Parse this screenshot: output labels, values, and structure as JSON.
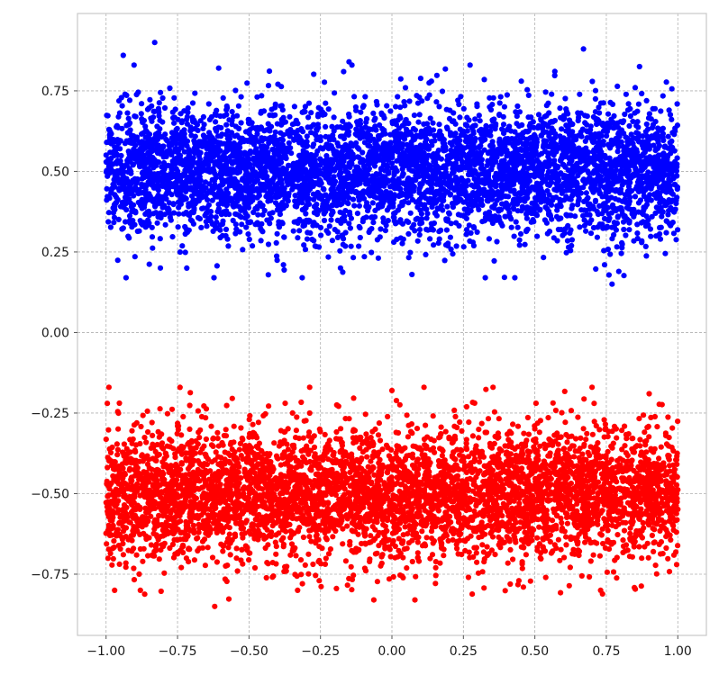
{
  "chart_data": {
    "type": "scatter",
    "title": "",
    "xlabel": "",
    "ylabel": "",
    "xlim": [
      -1.1,
      1.1
    ],
    "ylim": [
      -0.94,
      0.99
    ],
    "grid": true,
    "x_ticks": [
      "−1.00",
      "−0.75",
      "−0.50",
      "−0.25",
      "0.00",
      "0.25",
      "0.50",
      "0.75",
      "1.00"
    ],
    "x_tick_values": [
      -1.0,
      -0.75,
      -0.5,
      -0.25,
      0.0,
      0.25,
      0.5,
      0.75,
      1.0
    ],
    "y_ticks": [
      "0.75",
      "0.50",
      "0.25",
      "0.00",
      "−0.25",
      "−0.50",
      "−0.75"
    ],
    "y_tick_values": [
      0.75,
      0.5,
      0.25,
      0.0,
      -0.25,
      -0.5,
      -0.75
    ],
    "series": [
      {
        "color": "#0000ff",
        "x_range": [
          -1.0,
          1.0
        ],
        "y_center": 0.5,
        "y_spread": 0.1,
        "point_count": 5000,
        "notable_points": [
          {
            "x": -0.83,
            "y": 0.9
          },
          {
            "x": -0.94,
            "y": 0.86
          },
          {
            "x": -0.15,
            "y": 0.84
          },
          {
            "x": 0.67,
            "y": 0.88
          },
          {
            "x": 0.57,
            "y": 0.81
          },
          {
            "x": -0.93,
            "y": 0.17
          },
          {
            "x": 0.77,
            "y": 0.15
          },
          {
            "x": 0.07,
            "y": 0.18
          },
          {
            "x": -0.81,
            "y": 0.2
          },
          {
            "x": -0.18,
            "y": 0.2
          }
        ]
      },
      {
        "color": "#ff0000",
        "x_range": [
          -1.0,
          1.0
        ],
        "y_center": -0.5,
        "y_spread": 0.1,
        "point_count": 5000,
        "notable_points": [
          {
            "x": -0.99,
            "y": -0.17
          },
          {
            "x": 0.7,
            "y": -0.17
          },
          {
            "x": 0.0,
            "y": -0.18
          },
          {
            "x": 0.9,
            "y": -0.19
          },
          {
            "x": -0.62,
            "y": -0.85
          },
          {
            "x": -0.88,
            "y": -0.8
          },
          {
            "x": 0.73,
            "y": -0.8
          },
          {
            "x": -0.33,
            "y": -0.8
          },
          {
            "x": 0.46,
            "y": -0.79
          },
          {
            "x": -0.97,
            "y": -0.8
          }
        ]
      }
    ]
  }
}
